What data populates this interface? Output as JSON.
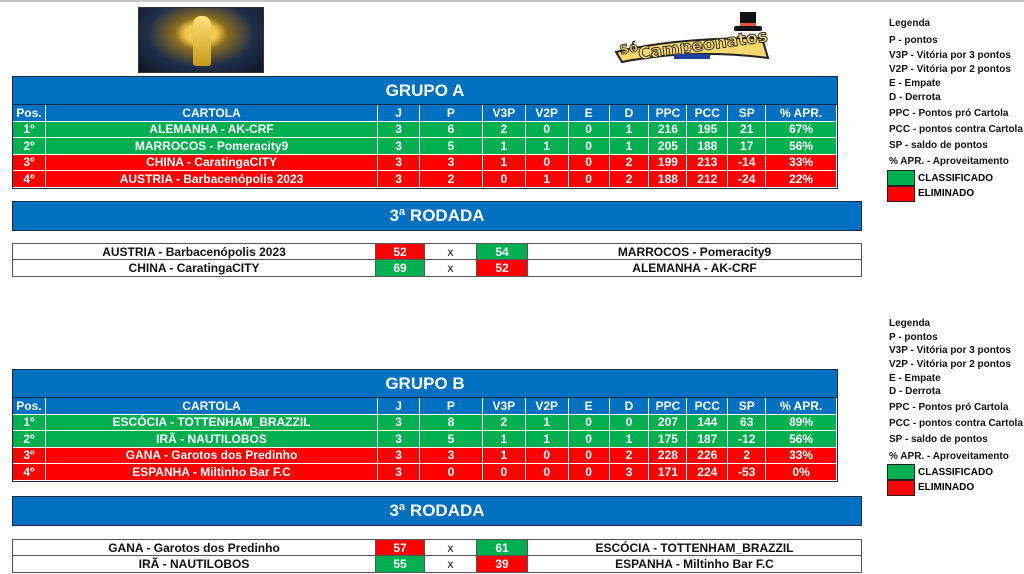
{
  "logo_text": "Só Campeonatos",
  "columns": [
    "Pos.",
    "CARTOLA",
    "J",
    "P",
    "V3P",
    "V2P",
    "E",
    "D",
    "PPC",
    "PCC",
    "SP",
    "% APR."
  ],
  "colors": {
    "blue": "#0070c0",
    "green": "#00b050",
    "red": "#ff0000"
  },
  "groups": [
    {
      "title": "GRUPO A",
      "round_title": "3ª RODADA",
      "rows": [
        {
          "status": "classificado",
          "cells": [
            "1º",
            "ALEMANHA - AK-CRF",
            "3",
            "6",
            "2",
            "0",
            "0",
            "1",
            "216",
            "195",
            "21",
            "67%"
          ]
        },
        {
          "status": "classificado",
          "cells": [
            "2º",
            "MARROCOS - Pomeracity9",
            "3",
            "5",
            "1",
            "1",
            "0",
            "1",
            "205",
            "188",
            "17",
            "56%"
          ]
        },
        {
          "status": "eliminado",
          "cells": [
            "3º",
            "CHINA - CaratingaCITY",
            "3",
            "3",
            "1",
            "0",
            "0",
            "2",
            "199",
            "213",
            "-14",
            "33%"
          ]
        },
        {
          "status": "eliminado",
          "cells": [
            "4º",
            "AUSTRIA - Barbacenópolis 2023",
            "3",
            "2",
            "0",
            "1",
            "0",
            "2",
            "188",
            "212",
            "-24",
            "22%"
          ]
        }
      ],
      "matches": [
        {
          "home": "AUSTRIA - Barbacenópolis 2023",
          "home_score": "52",
          "home_result": "loss",
          "vs": "x",
          "away_score": "54",
          "away_result": "win",
          "away": "MARROCOS - Pomeracity9"
        },
        {
          "home": "CHINA - CaratingaCITY",
          "home_score": "69",
          "home_result": "win",
          "vs": "x",
          "away_score": "52",
          "away_result": "loss",
          "away": "ALEMANHA - AK-CRF"
        }
      ]
    },
    {
      "title": "GRUPO B",
      "round_title": "3ª RODADA",
      "rows": [
        {
          "status": "classificado",
          "cells": [
            "1º",
            "ESCÓCIA - TOTTENHAM_BRAZZIL",
            "3",
            "8",
            "2",
            "1",
            "0",
            "0",
            "207",
            "144",
            "63",
            "89%"
          ]
        },
        {
          "status": "classificado",
          "cells": [
            "2º",
            "IRÃ - NAUTILOBOS",
            "3",
            "5",
            "1",
            "1",
            "0",
            "1",
            "175",
            "187",
            "-12",
            "56%"
          ]
        },
        {
          "status": "eliminado",
          "cells": [
            "3º",
            "GANA - Garotos dos Predinho",
            "3",
            "3",
            "1",
            "0",
            "0",
            "2",
            "228",
            "226",
            "2",
            "33%"
          ]
        },
        {
          "status": "eliminado",
          "cells": [
            "4º",
            "ESPANHA - Miltinho Bar F.C",
            "3",
            "0",
            "0",
            "0",
            "0",
            "3",
            "171",
            "224",
            "-53",
            "0%"
          ]
        }
      ],
      "matches": [
        {
          "home": "GANA - Garotos dos Predinho",
          "home_score": "57",
          "home_result": "loss",
          "vs": "x",
          "away_score": "61",
          "away_result": "win",
          "away": "ESCÓCIA - TOTTENHAM_BRAZZIL"
        },
        {
          "home": "IRÃ - NAUTILOBOS",
          "home_score": "55",
          "home_result": "win",
          "vs": "x",
          "away_score": "39",
          "away_result": "loss",
          "away": "ESPANHA - Miltinho Bar F.C"
        }
      ]
    }
  ],
  "legends": [
    {
      "items": [
        "Legenda",
        "P - pontos",
        "V3P - Vitória por 3 pontos",
        "V2P - Vitória por 2 pontos",
        "E - Empate",
        "D - Derrota",
        "PPC - Pontos pró Cartola",
        "PCC - pontos contra Cartola",
        "SP - saldo de pontos",
        "% APR. - Aproveitamento"
      ],
      "classificado": "CLASSIFICADO",
      "eliminado": "ELIMINADO"
    },
    {
      "items": [
        "Legenda",
        "P - pontos",
        "V3P - Vitória por 3 pontos",
        "V2P - Vitória por 2 pontos",
        "E - Empate",
        "D - Derrota",
        "PPC - Pontos pró Cartola",
        "PCC - pontos contra Cartola",
        "SP - saldo de pontos",
        "% APR. - Aproveitamento"
      ],
      "classificado": "CLASSIFICADO",
      "eliminado": "ELIMINADO"
    }
  ]
}
